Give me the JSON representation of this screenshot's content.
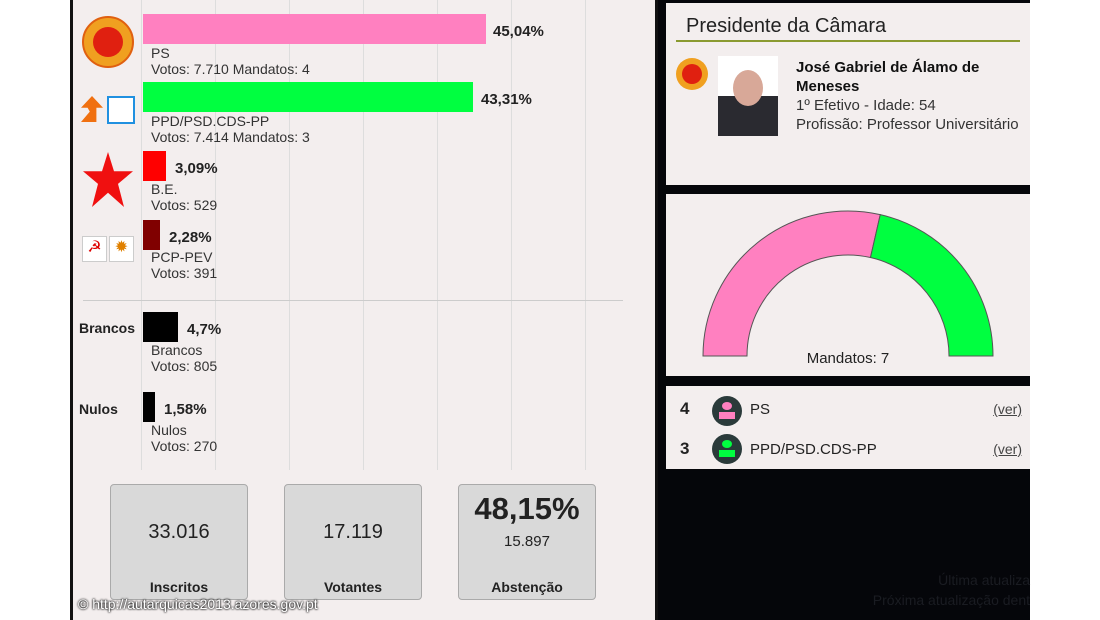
{
  "parties": [
    {
      "name": "PS",
      "pct": "45,04%",
      "value": 45.04,
      "details": "Votos: 7.710 Mandatos: 4",
      "color": "#ff80c0",
      "icon": "ps-fist-logo-icon"
    },
    {
      "name": "PPD/PSD.CDS-PP",
      "pct": "43,31%",
      "value": 43.31,
      "details": "Votos: 7.414 Mandatos: 3",
      "color": "#00ff40",
      "icon": "psd-cds-logo-icon"
    },
    {
      "name": "B.E.",
      "pct": "3,09%",
      "value": 3.09,
      "details": "Votos: 529",
      "color": "#ff0000",
      "icon": "be-star-logo-icon"
    },
    {
      "name": "PCP-PEV",
      "pct": "2,28%",
      "value": 2.28,
      "details": "Votos: 391",
      "color": "#800000",
      "icon": "pcp-pev-logo-icon"
    }
  ],
  "others": [
    {
      "side": "Brancos",
      "name": "Brancos",
      "pct": "4,7%",
      "value": 4.7,
      "details": "Votos: 805",
      "color": "#000000"
    },
    {
      "side": "Nulos",
      "name": "Nulos",
      "pct": "1,58%",
      "value": 1.58,
      "details": "Votos: 270",
      "color": "#000000"
    }
  ],
  "stats": {
    "inscritos": {
      "value": "33.016",
      "label": "Inscritos"
    },
    "votantes": {
      "value": "17.119",
      "label": "Votantes"
    },
    "abstencao": {
      "pct": "48,15%",
      "value": "15.897",
      "label": "Abstenção"
    }
  },
  "footer": "© http://autarquicas2013.azores.gov.pt",
  "president": {
    "title": "Presidente da Câmara",
    "name": "José Gabriel de Álamo de Meneses",
    "line1": "1º Efetivo - Idade: 54",
    "line2": "Profissão: Professor Universitário"
  },
  "gauge": {
    "label": "Mandatos: 7",
    "seats": [
      {
        "party": "PS",
        "count": 4,
        "color": "#ff80c0"
      },
      {
        "party": "PPD/PSD.CDS-PP",
        "count": 3,
        "color": "#00ff40"
      }
    ]
  },
  "mandates": [
    {
      "count": "4",
      "party": "PS",
      "link": "(ver)",
      "color": "#ff80c0"
    },
    {
      "count": "3",
      "party": "PPD/PSD.CDS-PP",
      "link": "(ver)",
      "color": "#00ff40"
    }
  ],
  "update": {
    "last": "Última atualiza",
    "next": "Próxima atualização dent"
  }
}
